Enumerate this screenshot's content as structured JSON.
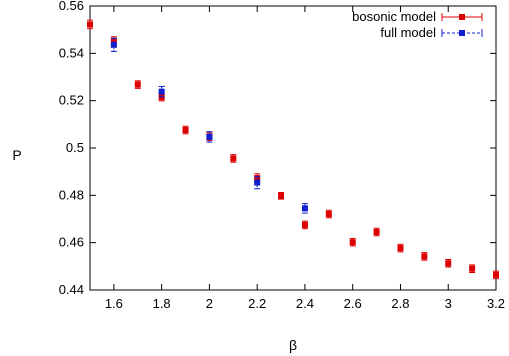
{
  "chart_data": {
    "type": "scatter",
    "xlabel": "β",
    "ylabel": "P",
    "xlim": [
      1.5,
      3.2
    ],
    "ylim": [
      0.44,
      0.56
    ],
    "xticks": [
      "1.6",
      "1.8",
      "2",
      "2.2",
      "2.4",
      "2.6",
      "2.8",
      "3",
      "3.2"
    ],
    "yticks": [
      "0.44",
      "0.46",
      "0.48",
      "0.5",
      "0.52",
      "0.54",
      "0.56"
    ],
    "grid": false,
    "legend": "top-right",
    "series": [
      {
        "name": "bosonic model",
        "color": "#dd0000",
        "marker": "square",
        "x": [
          1.5,
          1.6,
          1.7,
          1.8,
          1.9,
          2.0,
          2.1,
          2.2,
          2.3,
          2.4,
          2.5,
          2.6,
          2.7,
          2.8,
          2.9,
          3.0,
          3.1,
          3.2
        ],
        "y": [
          0.5522,
          0.5452,
          0.5268,
          0.5215,
          0.5076,
          0.5048,
          0.4956,
          0.4873,
          0.4798,
          0.4675,
          0.4721,
          0.4602,
          0.4645,
          0.4577,
          0.4542,
          0.4513,
          0.449,
          0.4464
        ],
        "err": [
          0.0018,
          0.0018,
          0.0016,
          0.0016,
          0.0016,
          0.0016,
          0.0016,
          0.0018,
          0.0014,
          0.0016,
          0.0016,
          0.0016,
          0.0016,
          0.0016,
          0.0016,
          0.0016,
          0.0016,
          0.0016
        ]
      },
      {
        "name": "full model",
        "color": "#1020d0",
        "marker": "square",
        "x": [
          1.6,
          1.8,
          2.0,
          2.2,
          2.4
        ],
        "y": [
          0.5436,
          0.5238,
          0.5047,
          0.4854,
          0.4745
        ],
        "err": [
          0.0028,
          0.0022,
          0.0022,
          0.0026,
          0.002
        ]
      }
    ]
  }
}
